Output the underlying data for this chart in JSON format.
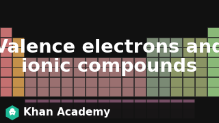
{
  "title_line1": "Valence electrons and",
  "title_line2": "ionic compounds",
  "subtitle": "Khan Academy",
  "bg_color": "#111111",
  "title_color": "#ffffff",
  "title_fontsize": 19.5,
  "subtitle_fontsize": 11,
  "khan_green": "#1db996",
  "bottom_bar_color": "#111111",
  "bottom_bar_height": 30,
  "group_colors": {
    "alkali": "#c47070",
    "alkaline": "#c4904a",
    "transition": "#9a7070",
    "post_trans": "#7a8a74",
    "metalloid": "#8a9464",
    "nonmetal": "#8a9464",
    "noble": "#8ab878",
    "lanthanide": "#a06888",
    "actinide": "#806070",
    "h": "#c47070"
  }
}
